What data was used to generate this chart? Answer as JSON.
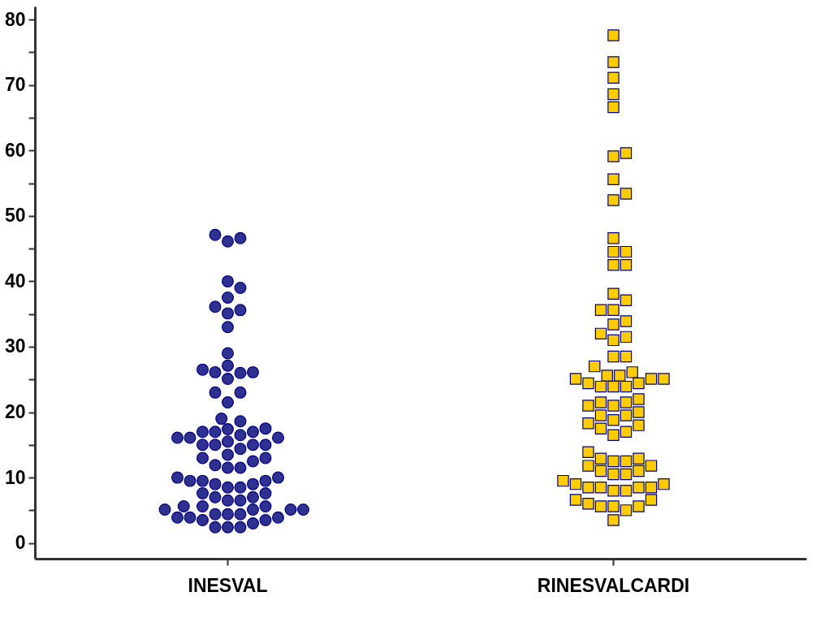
{
  "chart_data": {
    "type": "scatter",
    "categories": [
      "INESVAL",
      "RINESVALCARDI"
    ],
    "ylim": [
      -2.4,
      82
    ],
    "yticks": [
      0,
      {
        "value": 5,
        "label": null
      },
      10,
      {
        "value": 15,
        "label": null
      },
      20,
      {
        "value": 25,
        "label": null
      },
      30,
      {
        "value": 35,
        "label": null
      },
      40,
      {
        "value": 45,
        "label": null
      },
      50,
      {
        "value": 55,
        "label": null
      },
      60,
      {
        "value": 65,
        "label": null
      },
      70,
      {
        "value": 75,
        "label": null
      },
      80
    ],
    "grid": false,
    "series": [
      {
        "color": "#2e3192",
        "marker": "circle",
        "x": [
          "INESVAL",
          "INESVAL",
          "INESVAL",
          "INESVAL",
          "INESVAL",
          "INESVAL",
          "INESVAL",
          "INESVAL",
          "INESVAL",
          "INESVAL",
          "INESVAL",
          "INESVAL",
          "INESVAL",
          "INESVAL",
          "INESVAL",
          "INESVAL",
          "INESVAL",
          "INESVAL",
          "INESVAL",
          "INESVAL",
          "INESVAL",
          "INESVAL",
          "INESVAL",
          "INESVAL",
          "INESVAL",
          "INESVAL",
          "INESVAL",
          "INESVAL",
          "INESVAL",
          "INESVAL",
          "INESVAL",
          "INESVAL",
          "INESVAL",
          "INESVAL",
          "INESVAL",
          "INESVAL",
          "INESVAL",
          "INESVAL",
          "INESVAL",
          "INESVAL",
          "INESVAL",
          "INESVAL",
          "INESVAL",
          "INESVAL",
          "INESVAL",
          "INESVAL",
          "INESVAL",
          "INESVAL",
          "INESVAL",
          "INESVAL",
          "INESVAL",
          "INESVAL",
          "INESVAL",
          "INESVAL",
          "INESVAL",
          "INESVAL",
          "INESVAL",
          "INESVAL",
          "INESVAL",
          "INESVAL",
          "INESVAL",
          "INESVAL",
          "INESVAL",
          "INESVAL",
          "INESVAL",
          "INESVAL",
          "INESVAL",
          "INESVAL",
          "INESVAL",
          "INESVAL",
          "INESVAL",
          "INESVAL",
          "INESVAL",
          "INESVAL",
          "INESVAL",
          "INESVAL",
          "INESVAL",
          "INESVAL"
        ],
        "values": [
          47.1,
          46.6,
          46.1,
          40.0,
          39.0,
          37.5,
          36.1,
          35.6,
          35.1,
          33.0,
          29.0,
          27.1,
          26.5,
          26.1,
          26.1,
          26.0,
          25.1,
          23.0,
          23.0,
          21.5,
          19.0,
          18.6,
          17.5,
          17.4,
          17.0,
          17.0,
          17.0,
          16.5,
          16.1,
          16.1,
          16.1,
          15.5,
          15.0,
          15.0,
          15.0,
          15.0,
          14.4,
          13.5,
          13.0,
          13.0,
          12.5,
          11.9,
          11.5,
          11.5,
          10.0,
          10.0,
          9.5,
          9.5,
          9.5,
          9.0,
          9.0,
          8.5,
          8.5,
          7.6,
          7.6,
          7.0,
          7.0,
          6.5,
          6.5,
          5.6,
          5.6,
          5.6,
          5.1,
          5.1,
          5.1,
          5.1,
          4.4,
          4.4,
          4.4,
          3.9,
          3.9,
          3.9,
          3.5,
          3.5,
          3.0,
          2.4,
          2.4,
          2.4
        ]
      },
      {
        "color": "#ffcc00",
        "marker": "square",
        "x": [
          "RINESVALCARDI",
          "RINESVALCARDI",
          "RINESVALCARDI",
          "RINESVALCARDI",
          "RINESVALCARDI",
          "RINESVALCARDI",
          "RINESVALCARDI",
          "RINESVALCARDI",
          "RINESVALCARDI",
          "RINESVALCARDI",
          "RINESVALCARDI",
          "RINESVALCARDI",
          "RINESVALCARDI",
          "RINESVALCARDI",
          "RINESVALCARDI",
          "RINESVALCARDI",
          "RINESVALCARDI",
          "RINESVALCARDI",
          "RINESVALCARDI",
          "RINESVALCARDI",
          "RINESVALCARDI",
          "RINESVALCARDI",
          "RINESVALCARDI",
          "RINESVALCARDI",
          "RINESVALCARDI",
          "RINESVALCARDI",
          "RINESVALCARDI",
          "RINESVALCARDI",
          "RINESVALCARDI",
          "RINESVALCARDI",
          "RINESVALCARDI",
          "RINESVALCARDI",
          "RINESVALCARDI",
          "RINESVALCARDI",
          "RINESVALCARDI",
          "RINESVALCARDI",
          "RINESVALCARDI",
          "RINESVALCARDI",
          "RINESVALCARDI",
          "RINESVALCARDI",
          "RINESVALCARDI",
          "RINESVALCARDI",
          "RINESVALCARDI",
          "RINESVALCARDI",
          "RINESVALCARDI",
          "RINESVALCARDI",
          "RINESVALCARDI",
          "RINESVALCARDI",
          "RINESVALCARDI",
          "RINESVALCARDI",
          "RINESVALCARDI",
          "RINESVALCARDI",
          "RINESVALCARDI",
          "RINESVALCARDI",
          "RINESVALCARDI",
          "RINESVALCARDI",
          "RINESVALCARDI",
          "RINESVALCARDI",
          "RINESVALCARDI",
          "RINESVALCARDI",
          "RINESVALCARDI",
          "RINESVALCARDI",
          "RINESVALCARDI",
          "RINESVALCARDI",
          "RINESVALCARDI",
          "RINESVALCARDI",
          "RINESVALCARDI",
          "RINESVALCARDI",
          "RINESVALCARDI",
          "RINESVALCARDI",
          "RINESVALCARDI",
          "RINESVALCARDI",
          "RINESVALCARDI",
          "RINESVALCARDI",
          "RINESVALCARDI",
          "RINESVALCARDI",
          "RINESVALCARDI",
          "RINESVALCARDI",
          "RINESVALCARDI",
          "RINESVALCARDI"
        ],
        "values": [
          77.6,
          73.5,
          71.1,
          68.6,
          66.6,
          59.6,
          59.1,
          55.6,
          53.4,
          52.4,
          46.6,
          44.5,
          44.5,
          42.5,
          42.5,
          38.1,
          37.1,
          35.6,
          35.6,
          33.9,
          33.4,
          32.0,
          31.5,
          31.0,
          28.5,
          28.5,
          27.0,
          26.1,
          25.6,
          25.6,
          25.1,
          25.1,
          25.1,
          24.4,
          24.4,
          23.9,
          23.9,
          23.9,
          22.0,
          21.5,
          21.5,
          21.0,
          21.0,
          20.0,
          19.5,
          19.5,
          18.8,
          18.3,
          18.0,
          17.5,
          17.0,
          16.5,
          13.9,
          12.9,
          12.9,
          12.5,
          12.5,
          11.8,
          11.8,
          11.0,
          11.0,
          10.5,
          10.5,
          9.5,
          9.0,
          9.0,
          8.5,
          8.5,
          8.5,
          8.5,
          8.0,
          8.0,
          6.6,
          6.6,
          6.0,
          5.6,
          5.6,
          5.6,
          5.0,
          3.5
        ]
      }
    ]
  }
}
